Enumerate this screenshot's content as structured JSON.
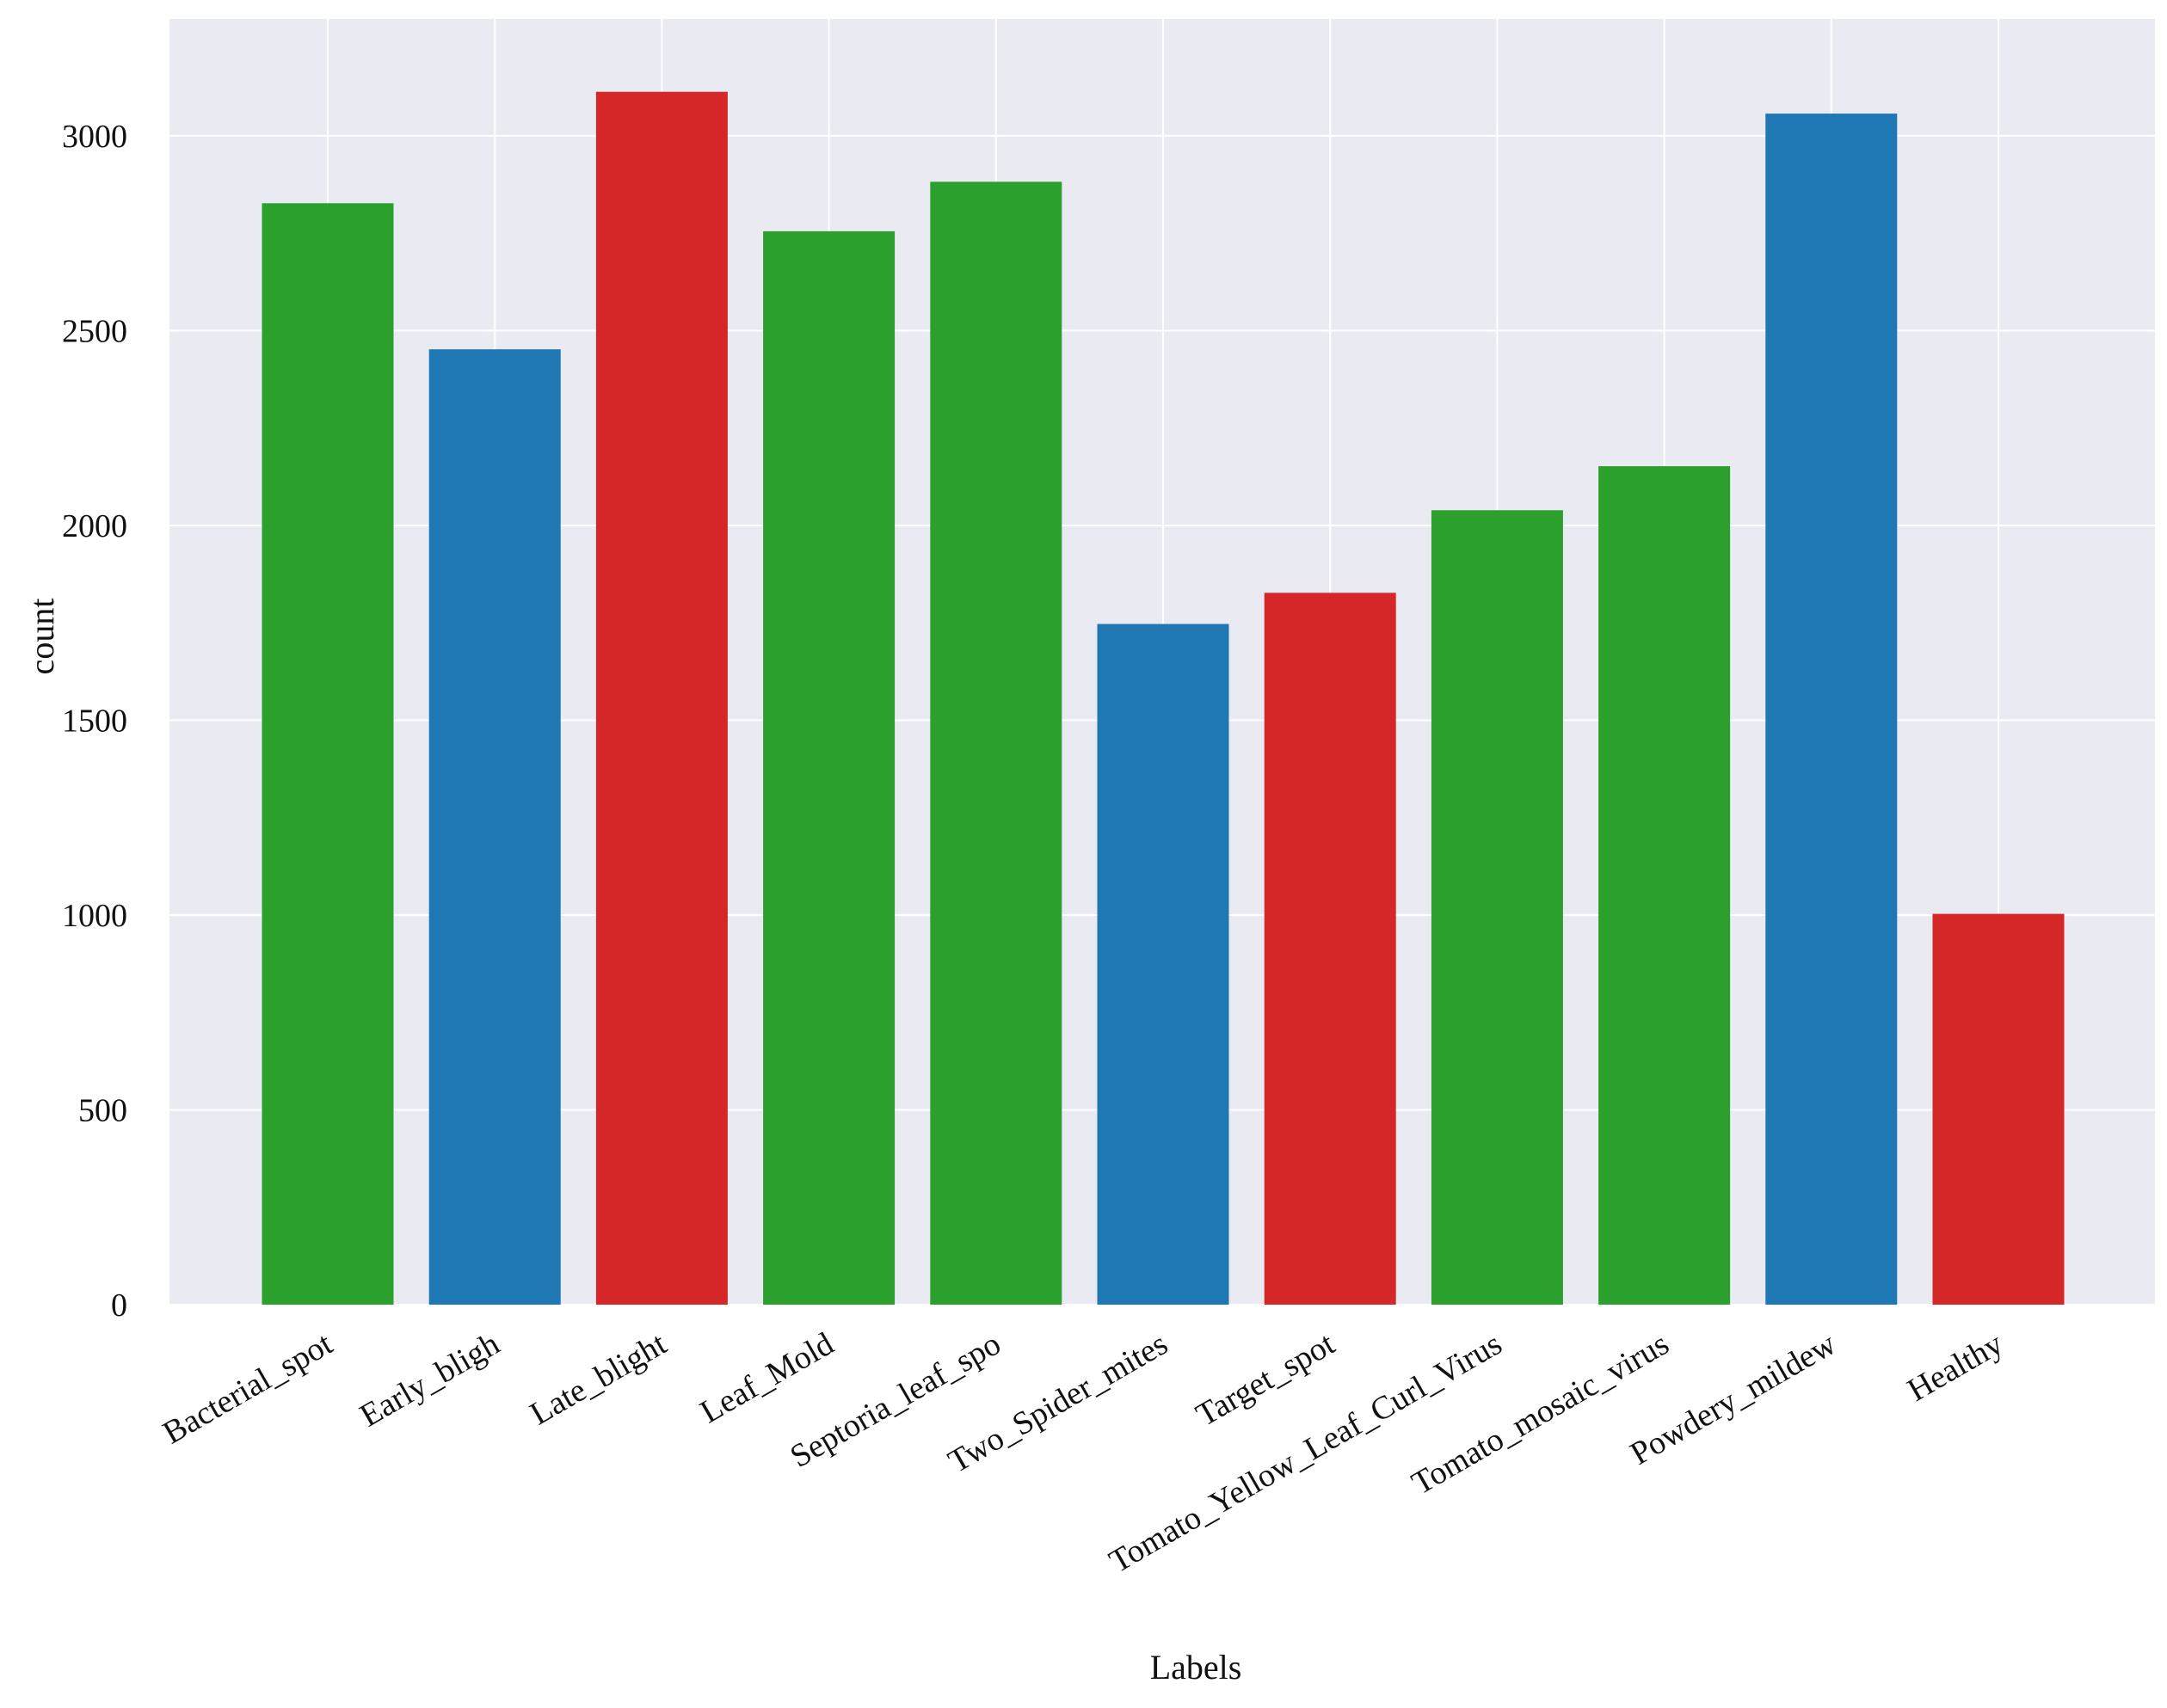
{
  "chart_data": {
    "type": "bar",
    "title": "",
    "xlabel": "Labels",
    "ylabel": "count",
    "ylim": [
      0,
      3300
    ],
    "yticks": [
      0,
      500,
      1000,
      1500,
      2000,
      2500,
      3000
    ],
    "yticks_labels": [
      "0",
      "500",
      "1000",
      "1500",
      "2000",
      "2500",
      "3000"
    ],
    "grid": true,
    "categories": [
      "Bacterial_spot",
      "Early_bligh",
      "Late_blight",
      "Leaf_Mold",
      "Septoria_leaf_spo",
      "Two_Spider_mites",
      "Target_spot",
      "Tomato_Yellow_Leaf_Curl_Virus",
      "Tomato_mosaic_virus",
      "Powdery_mildew",
      "Healthy"
    ],
    "values": [
      2827,
      2452,
      3113,
      2755,
      2882,
      1747,
      1827,
      2039,
      2152,
      3057,
      1003
    ],
    "colors": [
      "#2ca02c",
      "#1f77b4",
      "#d62728",
      "#2ca02c",
      "#2ca02c",
      "#1f77b4",
      "#d62728",
      "#2ca02c",
      "#2ca02c",
      "#1f77b4",
      "#d62728"
    ],
    "background_color": "#eaeaf2",
    "grid_color": "#ffffff"
  }
}
